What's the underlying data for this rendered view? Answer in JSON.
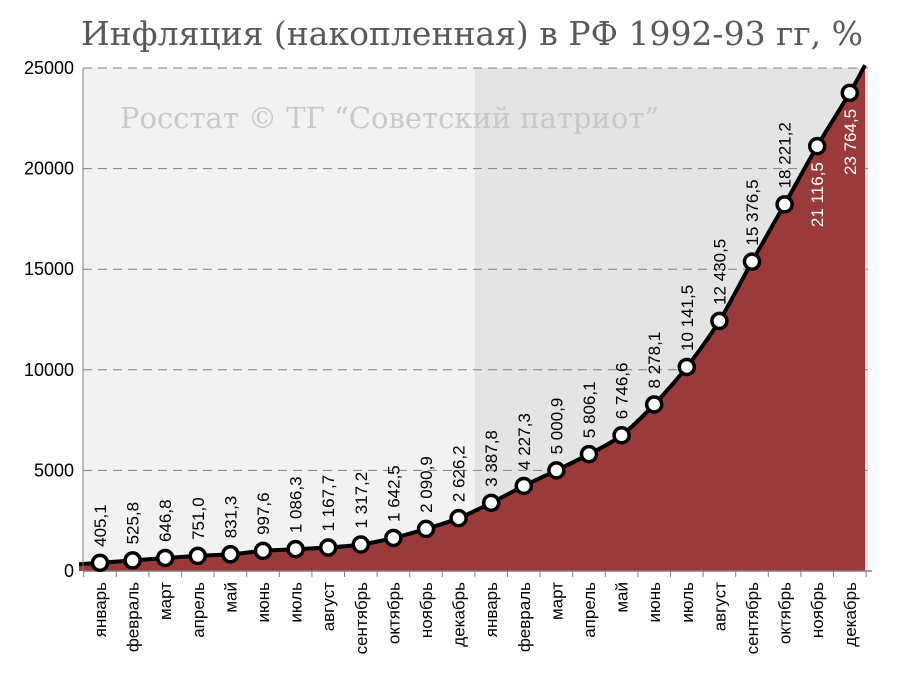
{
  "chart_data": {
    "type": "area",
    "title": "Инфляция  (накопленная) в РФ 1992-93 гг, %",
    "watermark": "Росстат © ТГ “Советский патриот”",
    "xlabel": "",
    "ylabel": "",
    "ylim": [
      0,
      25000
    ],
    "yticks": [
      0,
      5000,
      10000,
      15000,
      20000,
      25000
    ],
    "grid": true,
    "grid_style": "dashed",
    "categories": [
      "январь",
      "февраль",
      "март",
      "апрель",
      "май",
      "июнь",
      "июль",
      "август",
      "сентябрь",
      "октябрь",
      "ноябрь",
      "декабрь",
      "январь",
      "февраль",
      "март",
      "апрель",
      "май",
      "июнь",
      "июль",
      "август",
      "сентябрь",
      "октябрь",
      "ноябрь",
      "декабрь"
    ],
    "years": [
      "1992",
      "1993"
    ],
    "values": [
      405.1,
      525.8,
      646.8,
      751.0,
      831.3,
      997.6,
      1086.3,
      1167.7,
      1317.2,
      1642.5,
      2090.9,
      2626.2,
      3387.8,
      4227.3,
      5000.9,
      5806.1,
      6746.6,
      8278.1,
      10141.5,
      12430.5,
      15376.5,
      18221.2,
      21116.5,
      23764.5
    ],
    "data_labels": [
      "405,1",
      "525,8",
      "646,8",
      "751,0",
      "831,3",
      "997,6",
      "1 086,3",
      "1 167,7",
      "1 317,2",
      "1 642,5",
      "2 090,9",
      "2 626,2",
      "3 387,8",
      "4 227,3",
      "5 000,9",
      "5 806,1",
      "6 746,6",
      "8 278,1",
      "10 141,5",
      "12 430,5",
      "15 376,5",
      "18 221,2",
      "21 116,5",
      "23 764,5"
    ],
    "colors": {
      "area_fill": "#9b3a3a",
      "line": "#000000",
      "marker_fill": "#ffffff",
      "background_1992": "#f2f2f2",
      "background_1993": "#e4e4e4",
      "grid": "#7f7f7f",
      "label_outside": "#000000",
      "label_inside": "#ffffff"
    }
  }
}
